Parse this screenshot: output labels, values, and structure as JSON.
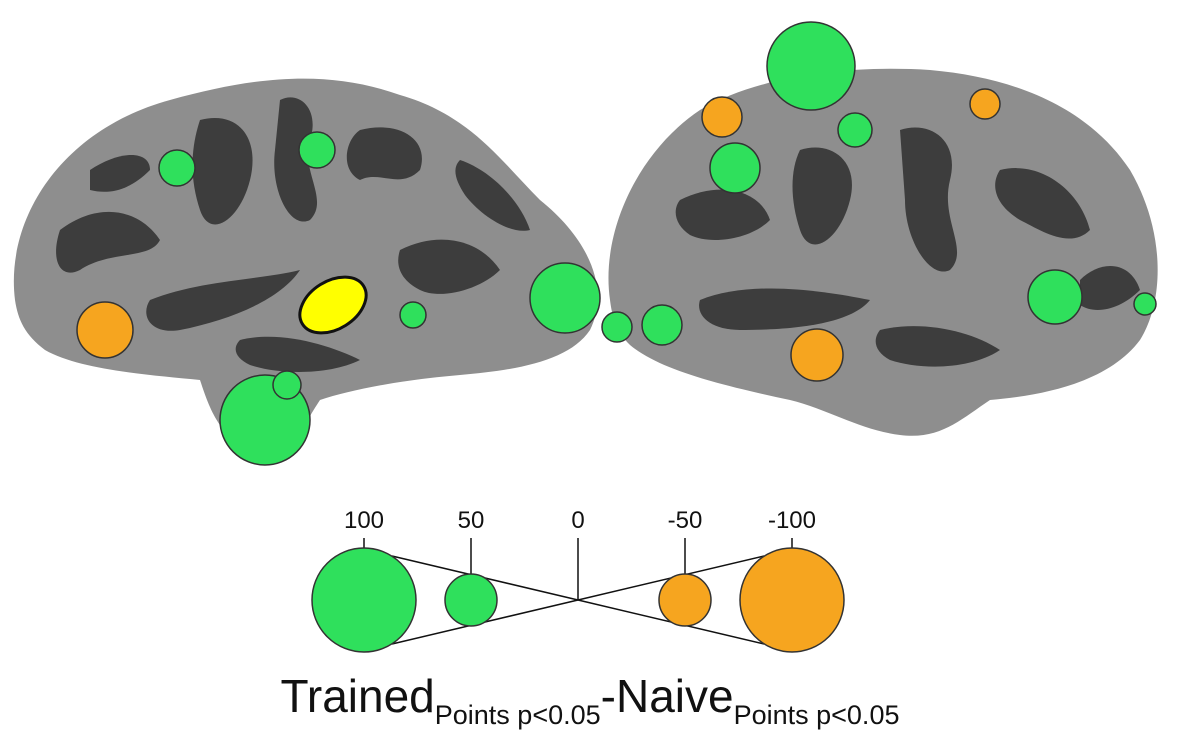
{
  "legend": {
    "ticks": [
      100,
      50,
      0,
      -50,
      -100
    ]
  },
  "caption": {
    "main_1": "Trained",
    "sub_1": "Points p<0.05",
    "main_2": "-Naive",
    "sub_2": "Points p<0.05"
  }
}
